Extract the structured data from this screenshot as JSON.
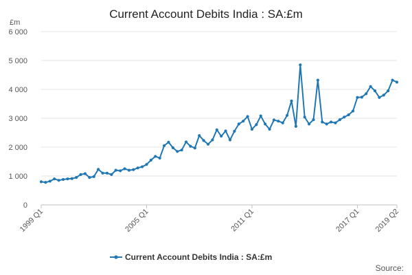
{
  "chart_data": {
    "type": "line",
    "title": "Current Account Debits India : SA:£m",
    "unit_label": "£m",
    "source_label": "Source:",
    "ylim": [
      0,
      6000
    ],
    "yticks": [
      0,
      1000,
      2000,
      3000,
      4000,
      5000,
      6000
    ],
    "ytick_labels": [
      "0",
      "1 000",
      "2 000",
      "3 000",
      "4 000",
      "5 000",
      "6 000"
    ],
    "xtick_labels": [
      "1999 Q1",
      "2005 Q1",
      "2011 Q1",
      "2017 Q1",
      "2019 Q2"
    ],
    "xtick_positions": [
      "1999 Q1",
      "2005 Q1",
      "2011 Q1",
      "2017 Q1",
      "2019 Q2"
    ],
    "grid": true,
    "legend": "bottom",
    "color": "#1f77b4",
    "x": [
      "1999 Q1",
      "1999 Q2",
      "1999 Q3",
      "1999 Q4",
      "2000 Q1",
      "2000 Q2",
      "2000 Q3",
      "2000 Q4",
      "2001 Q1",
      "2001 Q2",
      "2001 Q3",
      "2001 Q4",
      "2002 Q1",
      "2002 Q2",
      "2002 Q3",
      "2002 Q4",
      "2003 Q1",
      "2003 Q2",
      "2003 Q3",
      "2003 Q4",
      "2004 Q1",
      "2004 Q2",
      "2004 Q3",
      "2004 Q4",
      "2005 Q1",
      "2005 Q2",
      "2005 Q3",
      "2005 Q4",
      "2006 Q1",
      "2006 Q2",
      "2006 Q3",
      "2006 Q4",
      "2007 Q1",
      "2007 Q2",
      "2007 Q3",
      "2007 Q4",
      "2008 Q1",
      "2008 Q2",
      "2008 Q3",
      "2008 Q4",
      "2009 Q1",
      "2009 Q2",
      "2009 Q3",
      "2009 Q4",
      "2010 Q1",
      "2010 Q2",
      "2010 Q3",
      "2010 Q4",
      "2011 Q1",
      "2011 Q2",
      "2011 Q3",
      "2011 Q4",
      "2012 Q1",
      "2012 Q2",
      "2012 Q3",
      "2012 Q4",
      "2013 Q1",
      "2013 Q2",
      "2013 Q3",
      "2013 Q4",
      "2014 Q1",
      "2014 Q2",
      "2014 Q3",
      "2014 Q4",
      "2015 Q1",
      "2015 Q2",
      "2015 Q3",
      "2015 Q4",
      "2016 Q1",
      "2016 Q2",
      "2016 Q3",
      "2016 Q4",
      "2017 Q1",
      "2017 Q2",
      "2017 Q3",
      "2017 Q4",
      "2018 Q1",
      "2018 Q2",
      "2018 Q3",
      "2018 Q4",
      "2019 Q1",
      "2019 Q2"
    ],
    "series": [
      {
        "name": "Current Account Debits India : SA:£m",
        "values": [
          800,
          780,
          820,
          900,
          850,
          880,
          900,
          910,
          950,
          1050,
          1080,
          950,
          980,
          1230,
          1100,
          1100,
          1050,
          1200,
          1180,
          1250,
          1200,
          1220,
          1280,
          1320,
          1400,
          1550,
          1680,
          1620,
          2050,
          2170,
          1980,
          1850,
          1900,
          2180,
          2030,
          1970,
          2400,
          2230,
          2100,
          2250,
          2600,
          2380,
          2560,
          2250,
          2550,
          2800,
          2900,
          3060,
          2620,
          2780,
          3080,
          2800,
          2620,
          2940,
          2900,
          2840,
          3100,
          3600,
          2720,
          4850,
          3040,
          2800,
          2950,
          4320,
          2870,
          2800,
          2870,
          2840,
          2950,
          3040,
          3120,
          3250,
          3720,
          3730,
          3850,
          4100,
          3950,
          3720,
          3800,
          3950,
          4320,
          4250
        ]
      }
    ]
  }
}
